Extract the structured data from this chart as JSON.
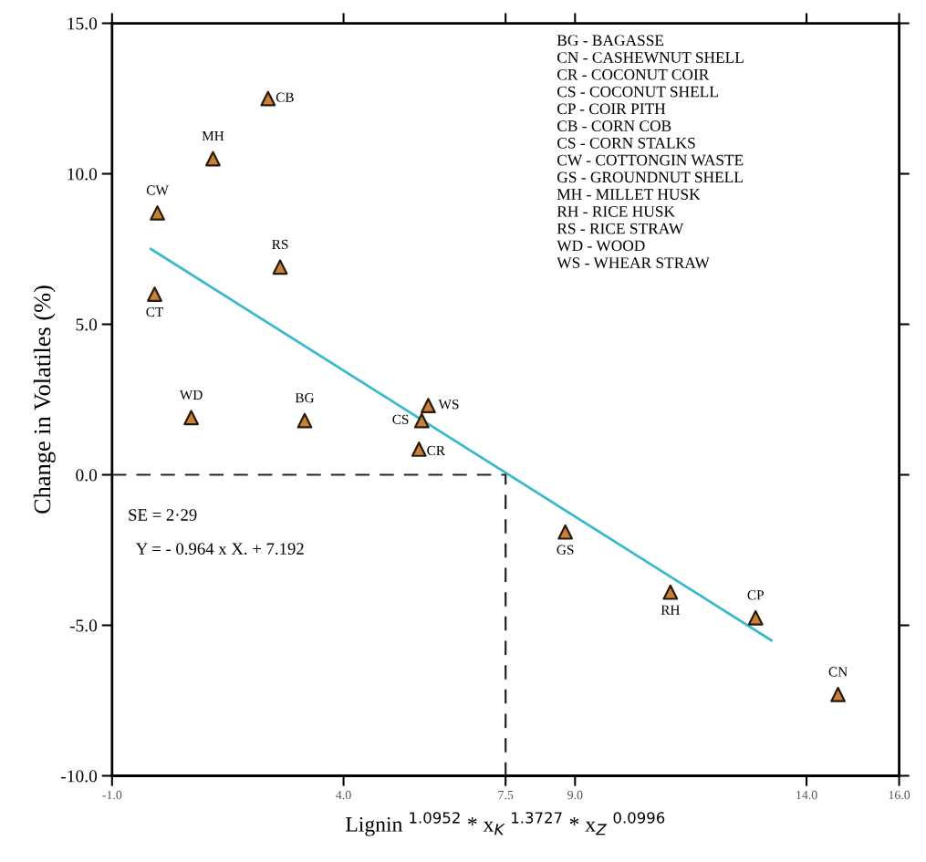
{
  "chart_data": {
    "type": "scatter",
    "xlabel": "Lignin $^{1.0952}$ * x$_{K}$ $^{1.3727}$ * x$_{Z}$ $^{0.0996}$",
    "ylabel": "Change in Volatiles (%)",
    "x": [
      2.37,
      1.18,
      -0.02,
      2.63,
      -0.08,
      0.71,
      3.16,
      5.83,
      5.69,
      5.63,
      8.79,
      11.06,
      12.9,
      14.68
    ],
    "series": [
      {
        "color": "#c8803a",
        "marker": "triangle",
        "values": [
          12.5,
          10.5,
          8.7,
          6.9,
          6.0,
          1.9,
          1.8,
          2.3,
          1.8,
          0.85,
          -1.9,
          -3.9,
          -4.75,
          -7.3
        ]
      },
      {
        "type": "line",
        "color": "#3ab8cc",
        "line_style": "solid",
        "marker": "none",
        "x": [
          -0.16,
          13.24
        ],
        "values": [
          7.5,
          -5.5
        ]
      },
      {
        "type": "line",
        "color": "#222222",
        "line_style": "dashed",
        "marker": "none",
        "x": [
          -1.0,
          7.5,
          7.5
        ],
        "values": [
          0.0,
          0.0,
          -10.0
        ]
      }
    ],
    "xlim": [
      -1.0,
      16.0
    ],
    "ylim": [
      -10.0,
      15.0
    ],
    "xticks": [
      {
        "value": -1.0,
        "label": "-1.0"
      },
      {
        "value": 4.0,
        "label": "4.0"
      },
      {
        "value": 7.5,
        "label": "7.5"
      },
      {
        "value": 9.0,
        "label": "9.0"
      },
      {
        "value": 14.0,
        "label": "14.0"
      },
      {
        "value": 16.0,
        "label": "16.0"
      }
    ],
    "yticks": [
      {
        "value": -10.0,
        "label": "-10.0"
      },
      {
        "value": -5.0,
        "label": "-5.0"
      },
      {
        "value": 0.0,
        "label": "0.0"
      },
      {
        "value": 5.0,
        "label": "5.0"
      },
      {
        "value": 10.0,
        "label": "10.0"
      },
      {
        "value": 15.0,
        "label": "15.0"
      }
    ],
    "grid": false,
    "legend": false,
    "annotations": [
      {
        "text": "CB",
        "x": 2.37,
        "y": 12.5
      },
      {
        "text": "MH",
        "x": 1.18,
        "y": 10.5
      },
      {
        "text": "CW",
        "x": -0.02,
        "y": 8.7
      },
      {
        "text": "RS",
        "x": 2.63,
        "y": 6.9
      },
      {
        "text": "CT",
        "x": -0.08,
        "y": 6.0
      },
      {
        "text": "WD",
        "x": 0.71,
        "y": 1.9
      },
      {
        "text": "BG",
        "x": 3.16,
        "y": 1.8
      },
      {
        "text": "WS",
        "x": 5.83,
        "y": 2.3
      },
      {
        "text": "CS",
        "x": 5.69,
        "y": 1.8
      },
      {
        "text": "CR",
        "x": 5.63,
        "y": 0.85
      },
      {
        "text": "GS",
        "x": 8.79,
        "y": -1.9
      },
      {
        "text": "RH",
        "x": 11.06,
        "y": -3.9
      },
      {
        "text": "CP",
        "x": 12.9,
        "y": -4.75
      },
      {
        "text": "CN",
        "x": 14.68,
        "y": -7.3
      },
      "BG - BAGASSE\nCN - CASHEWNUT SHELL\nCR - COCONUT COIR\nCS - COCONUT SHELL\nCP - COIR PITH\nCB - CORN COB\nCS - CORN STALKS\nCW - COTTONGIN WASTE\nGS - GROUNDNUT SHELL\nMH - MILLET HUSK\nRH - RICE HUSK\nRS - RICE STRAW\nWD - WOOD\nWS - WHEAR STRAW",
      "SE = 2·29",
      "Y = - 0.964 x X. + 7.192"
    ]
  }
}
